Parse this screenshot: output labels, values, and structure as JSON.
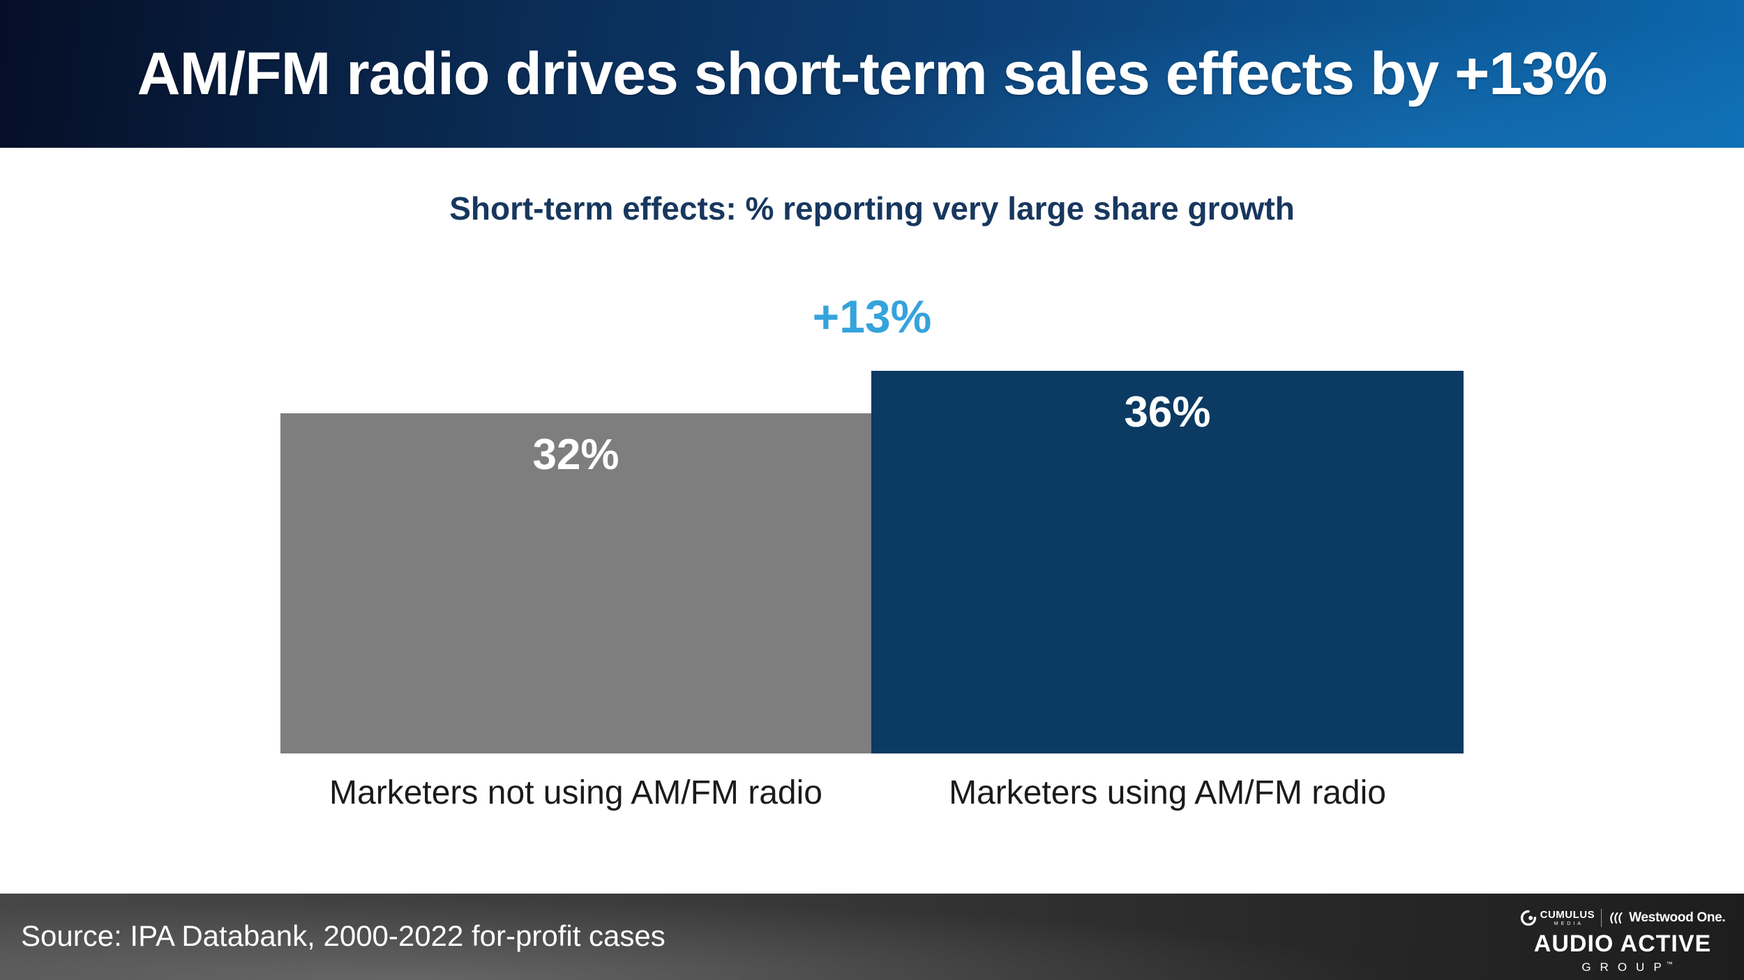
{
  "header": {
    "title": "AM/FM radio drives short-term sales effects by +13%"
  },
  "chart_data": {
    "type": "bar",
    "title": "Short-term effects: % reporting very large share growth",
    "categories": [
      "Marketers not using AM/FM radio",
      "Marketers using AM/FM radio"
    ],
    "values": [
      32,
      36
    ],
    "value_labels": [
      "32%",
      "36%"
    ],
    "annotation": "+13%",
    "annotation_color": "#35A3DC",
    "bar_colors": [
      "#7E7E7E",
      "#0B3A62"
    ],
    "value_label_position": "inside-top",
    "axes_visible": false,
    "gridlines": false,
    "baseline": 0
  },
  "footer": {
    "source": "Source: IPA Databank, 2000-2022 for-profit cases",
    "logo": {
      "cumulus": "CUMULUS",
      "cumulus_media": "MEDIA",
      "westwood_one": "Westwood One.",
      "audio_active": "AUDIO ACTIVE",
      "group": "GROUP",
      "trademark": "™"
    }
  },
  "colors": {
    "header_gradient_dark": "#050E26",
    "header_gradient_light": "#0D68AE",
    "subtitle_navy": "#17375E",
    "accent_light_blue": "#35A3DC",
    "bar_gray": "#7E7E7E",
    "bar_navy": "#0B3A62",
    "footer_charcoal": "#2A2A2A",
    "text_white": "#FFFFFF",
    "category_text": "#1B1B1B"
  }
}
